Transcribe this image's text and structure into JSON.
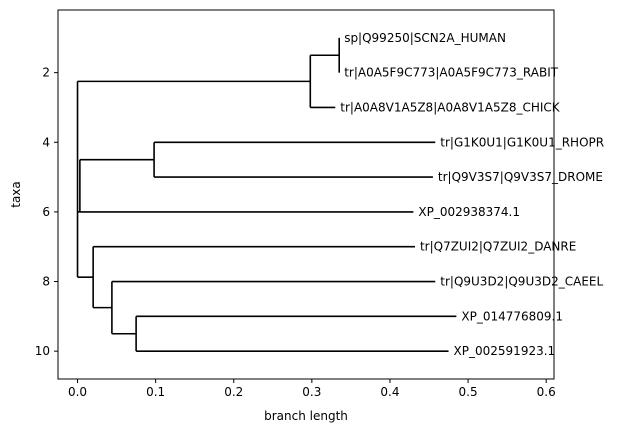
{
  "chart_data": {
    "type": "tree",
    "xlabel": "branch length",
    "ylabel": "taxa",
    "xlim": [
      -0.025,
      0.61
    ],
    "ylim": [
      10.8,
      0.2
    ],
    "xticks": [
      0.0,
      0.1,
      0.2,
      0.3,
      0.4,
      0.5,
      0.6
    ],
    "xtick_labels": [
      "0.0",
      "0.1",
      "0.2",
      "0.3",
      "0.4",
      "0.5",
      "0.6"
    ],
    "yticks": [
      2,
      4,
      6,
      8,
      10
    ],
    "ytick_labels": [
      "2",
      "4",
      "6",
      "8",
      "10"
    ],
    "leaves": [
      {
        "label": "sp|Q99250|SCN2A_HUMAN",
        "x": 0.335,
        "y": 1
      },
      {
        "label": "tr|A0A5F9C773|A0A5F9C773_RABIT",
        "x": 0.335,
        "y": 2
      },
      {
        "label": "tr|A0A8V1A5Z8|A0A8V1A5Z8_CHICK",
        "x": 0.33,
        "y": 3
      },
      {
        "label": "tr|G1K0U1|G1K0U1_RHOPR",
        "x": 0.458,
        "y": 4
      },
      {
        "label": "tr|Q9V3S7|Q9V3S7_DROME",
        "x": 0.455,
        "y": 5
      },
      {
        "label": "XP_002938374.1",
        "x": 0.43,
        "y": 6
      },
      {
        "label": "tr|Q7ZUI2|Q7ZUI2_DANRE",
        "x": 0.432,
        "y": 7
      },
      {
        "label": "tr|Q9U3D2|Q9U3D2_CAEEL",
        "x": 0.458,
        "y": 8
      },
      {
        "label": "XP_014776809.1",
        "x": 0.485,
        "y": 9
      },
      {
        "label": "XP_002591923.1",
        "x": 0.475,
        "y": 10
      }
    ],
    "internal_nodes": [
      {
        "id": "root",
        "x": 0.0,
        "y_top": 2.25,
        "y_bottom": 7.875
      },
      {
        "id": "human_rabbit",
        "x": 0.335,
        "y_top": 1,
        "y_bottom": 2
      },
      {
        "id": "tetrapod",
        "x": 0.298,
        "y_top": 1.5,
        "y_bottom": 3
      },
      {
        "id": "bilateria",
        "x": 0.003,
        "y_top": 4.5,
        "y_bottom": 6
      },
      {
        "id": "insect",
        "x": 0.098,
        "y_top": 4,
        "y_bottom": 5
      },
      {
        "id": "danre_group",
        "x": 0.02,
        "y_top": 7,
        "y_bottom": 8.75
      },
      {
        "id": "caeel_group",
        "x": 0.044,
        "y_top": 8,
        "y_bottom": 9.5
      },
      {
        "id": "amphioxus",
        "x": 0.075,
        "y_top": 9,
        "y_bottom": 10
      }
    ],
    "edges": [
      {
        "from": "root",
        "to": "tetrapod",
        "y": 2.25
      },
      {
        "from": "root",
        "to": "bilateria",
        "y": 6.0
      },
      {
        "from": "root",
        "to": "danre_group",
        "y": 7.875
      },
      {
        "from": "tetrapod",
        "to": "human_rabbit",
        "y": 1.5
      },
      {
        "from": "tetrapod",
        "to": "leaf3",
        "y": 3
      },
      {
        "from": "human_rabbit",
        "to": "leaf1",
        "y": 1
      },
      {
        "from": "human_rabbit",
        "to": "leaf2",
        "y": 2
      },
      {
        "from": "bilateria",
        "to": "insect",
        "y": 4.5
      },
      {
        "from": "bilateria",
        "to": "leaf6",
        "y": 6
      },
      {
        "from": "insect",
        "to": "leaf4",
        "y": 4
      },
      {
        "from": "insect",
        "to": "leaf5",
        "y": 5
      },
      {
        "from": "danre_group",
        "to": "leaf7",
        "y": 7
      },
      {
        "from": "danre_group",
        "to": "caeel_group",
        "y": 8.75
      },
      {
        "from": "caeel_group",
        "to": "leaf8",
        "y": 8
      },
      {
        "from": "caeel_group",
        "to": "amphioxus",
        "y": 9.5
      },
      {
        "from": "amphioxus",
        "to": "leaf9",
        "y": 9
      },
      {
        "from": "amphioxus",
        "to": "leaf10",
        "y": 10
      }
    ],
    "grid": false,
    "legend": "none"
  }
}
